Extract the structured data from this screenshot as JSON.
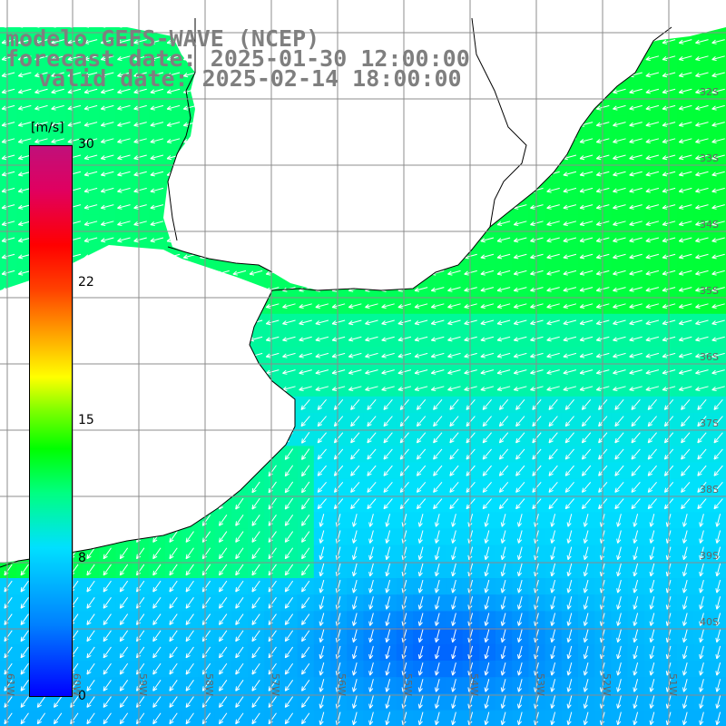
{
  "header": {
    "line1": "modelo GEFS-WAVE (NCEP)",
    "line2": "forecast date: 2025-01-30 12:00:00",
    "line3": "valid date: 2025-02-14 18:00:00"
  },
  "colorbar": {
    "unit": "[m/s]",
    "ticks": [
      "30",
      "22",
      "15",
      "8",
      "0"
    ],
    "range": [
      0,
      30
    ]
  },
  "grid": {
    "lat_labels": [
      "32S",
      "33S",
      "34S",
      "35S",
      "36S",
      "37S",
      "38S",
      "39S",
      "40S"
    ],
    "lon_labels": [
      "61W",
      "60W",
      "59W",
      "58W",
      "57W",
      "56W",
      "55W",
      "54W",
      "53W",
      "52W",
      "51W"
    ]
  },
  "colors": {
    "land": "#ffffff",
    "gridline": "#8c8c8c",
    "arrow": "#ffffff",
    "coast": "#000000",
    "title": "#7f7f7f"
  },
  "map": {
    "variable": "wind speed",
    "arrow_direction": "toward southwest / west-southwest",
    "max_speed_region": "near 10-12 m/s green band along coast",
    "min_speed_region": "around 5 m/s blue patch in south"
  }
}
